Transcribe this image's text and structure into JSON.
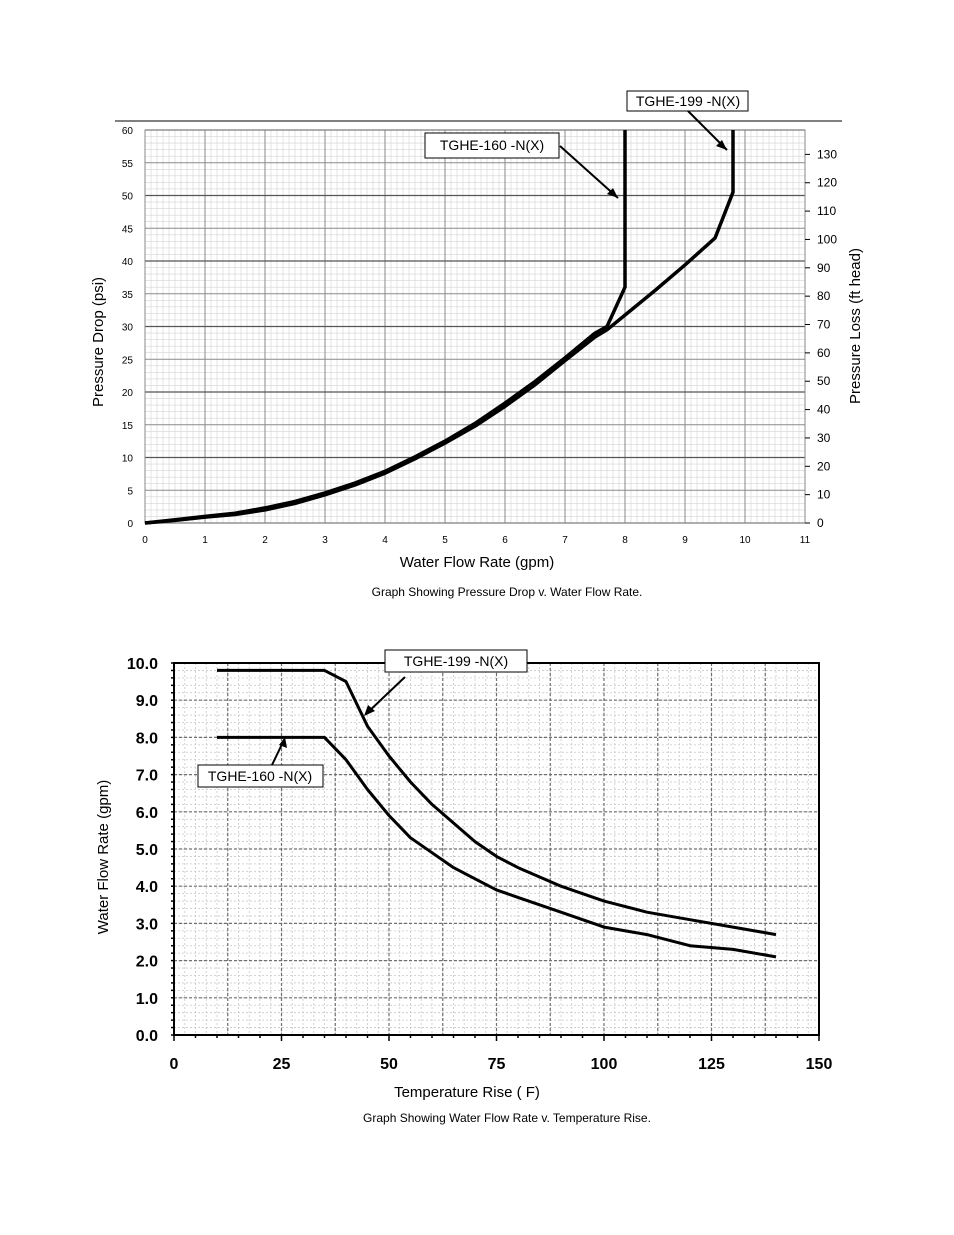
{
  "chart_data": [
    {
      "type": "line",
      "title": "",
      "caption": "Graph Showing Pressure Drop v. Water Flow Rate.",
      "xlabel": "Water Flow Rate (gpm)",
      "ylabel": "Pressure Drop (psi)",
      "y2label": "Pressure Loss (ft head)",
      "xlim": [
        0,
        11
      ],
      "ylim": [
        0,
        60
      ],
      "y2lim": [
        0,
        138.6
      ],
      "x_ticks": [
        "0",
        "1",
        "2",
        "3",
        "4",
        "5",
        "6",
        "7",
        "8",
        "9",
        "10",
        "11"
      ],
      "y_ticks": [
        "0",
        "5",
        "10",
        "15",
        "20",
        "25",
        "30",
        "35",
        "40",
        "45",
        "50",
        "55",
        "60"
      ],
      "y2_ticks": [
        "0",
        "10",
        "20",
        "30",
        "40",
        "50",
        "60",
        "70",
        "80",
        "90",
        "100",
        "110",
        "120",
        "130"
      ],
      "grid": true,
      "series": [
        {
          "name": "TGHE-160 -N(X)",
          "x": [
            0,
            0.5,
            1,
            1.5,
            2,
            2.5,
            3,
            3.5,
            4,
            4.5,
            5,
            5.5,
            6,
            6.5,
            7,
            7.5,
            7.7,
            7.9,
            8.0,
            8.0,
            8.0
          ],
          "y": [
            0,
            0.5,
            1.0,
            1.5,
            2.3,
            3.3,
            4.6,
            6.1,
            7.9,
            10.1,
            12.5,
            15.2,
            18.3,
            21.6,
            25.2,
            29.0,
            30.0,
            34.0,
            36.0,
            45.0,
            60.0
          ]
        },
        {
          "name": "TGHE-199 -N(X)",
          "x": [
            0,
            0.5,
            1,
            1.5,
            2,
            2.5,
            3,
            3.5,
            4,
            4.5,
            5,
            5.5,
            6,
            6.5,
            7,
            7.5,
            7.7,
            8.5,
            9.0,
            9.5,
            9.8,
            9.8
          ],
          "y": [
            0,
            0.4,
            0.9,
            1.3,
            2.0,
            3.0,
            4.3,
            5.8,
            7.6,
            9.8,
            12.2,
            14.8,
            17.8,
            21.1,
            24.8,
            28.4,
            29.5,
            35.5,
            39.4,
            43.5,
            50.5,
            60.0
          ]
        }
      ],
      "annotations": [
        "TGHE-160 -N(X)",
        "TGHE-199 -N(X)"
      ]
    },
    {
      "type": "line",
      "title": "",
      "caption": "Graph Showing Water Flow Rate v. Temperature Rise.",
      "xlabel": "Temperature Rise ( F)",
      "ylabel": "Water Flow Rate (gpm)",
      "xlim": [
        0,
        150
      ],
      "ylim": [
        0,
        10
      ],
      "x_ticks": [
        "0",
        "25",
        "50",
        "75",
        "100",
        "125",
        "150"
      ],
      "y_ticks": [
        "0.0",
        "1.0",
        "2.0",
        "3.0",
        "4.0",
        "5.0",
        "6.0",
        "7.0",
        "8.0",
        "9.0",
        "10.0"
      ],
      "grid": true,
      "series": [
        {
          "name": "TGHE-199 -N(X)",
          "x": [
            10,
            35,
            40,
            45,
            50,
            55,
            60,
            65,
            70,
            75,
            80,
            90,
            100,
            110,
            120,
            130,
            140
          ],
          "y": [
            9.8,
            9.8,
            9.5,
            8.3,
            7.5,
            6.8,
            6.2,
            5.7,
            5.2,
            4.8,
            4.5,
            4.0,
            3.6,
            3.3,
            3.1,
            2.9,
            2.7
          ]
        },
        {
          "name": "TGHE-160 -N(X)",
          "x": [
            10,
            35,
            40,
            45,
            50,
            55,
            60,
            65,
            70,
            75,
            80,
            90,
            100,
            110,
            120,
            130,
            140
          ],
          "y": [
            8.0,
            8.0,
            7.4,
            6.6,
            5.9,
            5.3,
            4.9,
            4.5,
            4.2,
            3.9,
            3.7,
            3.3,
            2.9,
            2.7,
            2.4,
            2.3,
            2.1
          ]
        }
      ],
      "annotations": [
        "TGHE-199 -N(X)",
        "TGHE-160 -N(X)"
      ]
    }
  ]
}
